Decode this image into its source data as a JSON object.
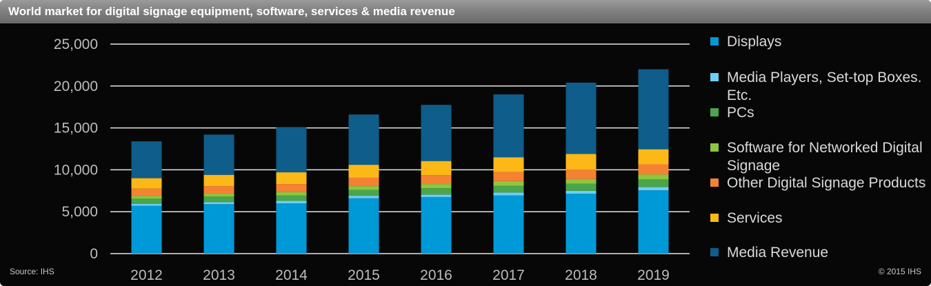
{
  "title": "World market for digital signage equipment, software, services & media revenue",
  "source": "Source: IHS",
  "copyright": "© 2015 IHS",
  "chart_data": {
    "type": "bar",
    "stacked": true,
    "title": "World market for digital signage equipment, software, services & media revenue",
    "xlabel": "",
    "ylabel": "",
    "categories": [
      "2012",
      "2013",
      "2014",
      "2015",
      "2016",
      "2017",
      "2018",
      "2019"
    ],
    "ylim": [
      0,
      25000
    ],
    "yticks": [
      0,
      5000,
      10000,
      15000,
      20000,
      25000
    ],
    "ytick_labels": [
      "0",
      "5,000",
      "10,000",
      "15,000",
      "20,000",
      "25,000"
    ],
    "grid": true,
    "legend_position": "right",
    "series": [
      {
        "name": "Displays",
        "color": "#0099d8",
        "values": [
          5700,
          5900,
          6000,
          6600,
          6750,
          6950,
          7150,
          7550
        ]
      },
      {
        "name": "Media Players, Set-top Boxes. Etc.",
        "color": "#6dcff6",
        "values": [
          250,
          250,
          300,
          300,
          300,
          350,
          350,
          400
        ]
      },
      {
        "name": "PCs",
        "color": "#4aa54b",
        "values": [
          600,
          650,
          650,
          700,
          750,
          800,
          850,
          900
        ]
      },
      {
        "name": "Software for Networked Digital Signage",
        "color": "#8dc63f",
        "values": [
          350,
          350,
          400,
          450,
          500,
          550,
          550,
          600
        ]
      },
      {
        "name": "Other Digital Signage Products",
        "color": "#f58232",
        "values": [
          850,
          900,
          950,
          1000,
          1050,
          1100,
          1150,
          1200
        ]
      },
      {
        "name": "Services",
        "color": "#fbb817",
        "values": [
          1250,
          1350,
          1400,
          1550,
          1700,
          1750,
          1850,
          1800
        ]
      },
      {
        "name": "Media Revenue",
        "color": "#0e5d8a",
        "values": [
          4400,
          4800,
          5400,
          6000,
          6700,
          7500,
          8500,
          9550
        ]
      }
    ]
  }
}
